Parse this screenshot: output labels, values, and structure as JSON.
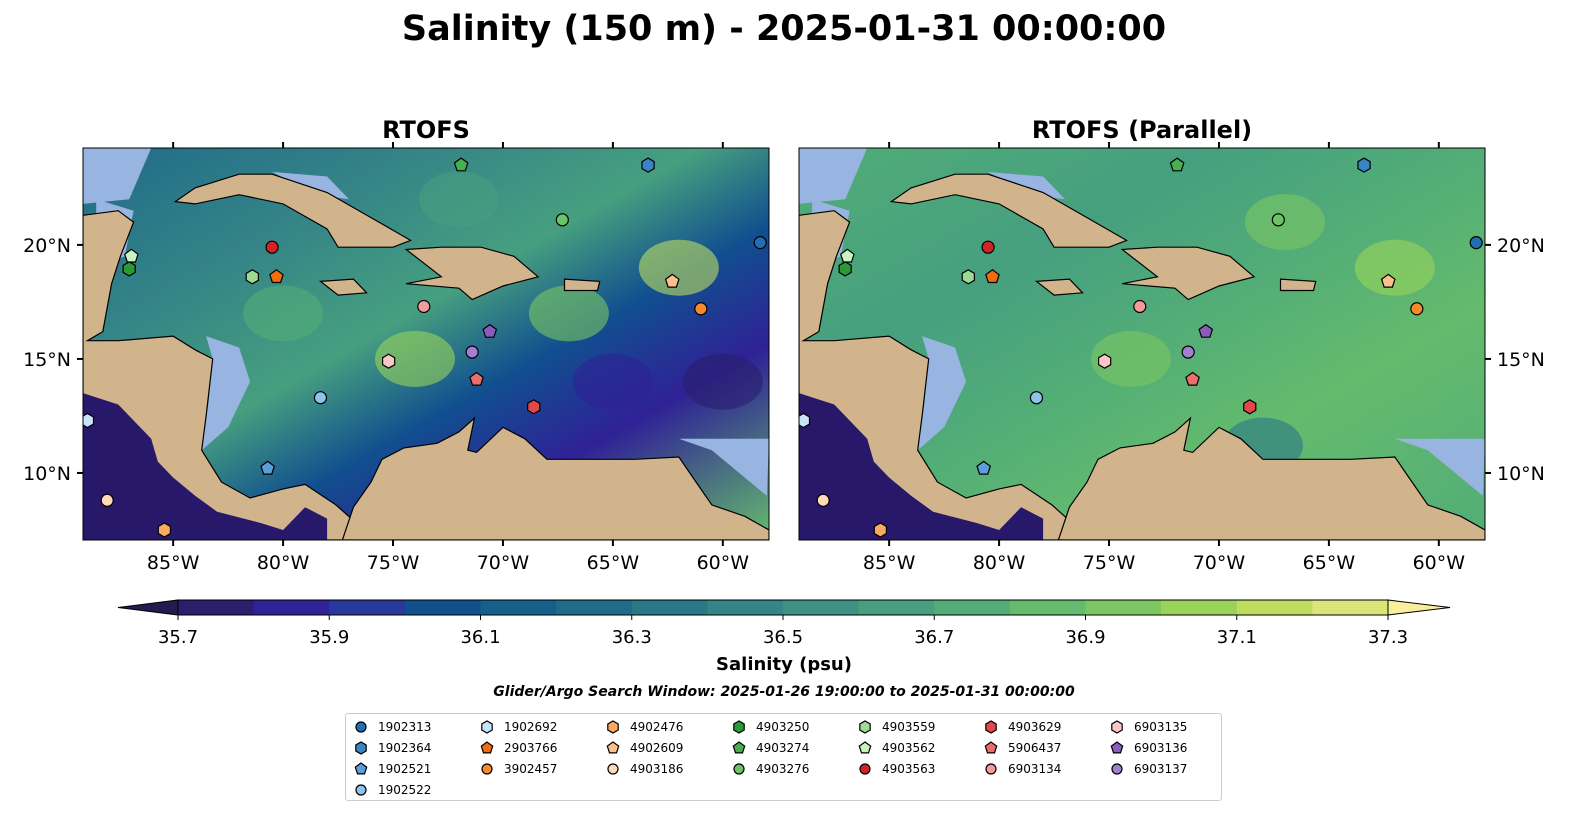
{
  "title": "Salinity (150 m) - 2025-01-31 00:00:00",
  "chart_data": {
    "type": "map-contour",
    "title": "Salinity (150 m) - 2025-01-31 00:00:00",
    "panels": [
      {
        "title": "RTOFS",
        "style": "mixed"
      },
      {
        "title": "RTOFS (Parallel)",
        "style": "green"
      }
    ],
    "lon_range": [
      -89.1,
      -57.9
    ],
    "lat_range": [
      7.06,
      24.25
    ],
    "x_ticks": [
      {
        "v": -85,
        "label": "85°W"
      },
      {
        "v": -80,
        "label": "80°W"
      },
      {
        "v": -75,
        "label": "75°W"
      },
      {
        "v": -70,
        "label": "70°W"
      },
      {
        "v": -65,
        "label": "65°W"
      },
      {
        "v": -60,
        "label": "60°W"
      }
    ],
    "y_ticks": [
      {
        "v": 20,
        "label": "20°N"
      },
      {
        "v": 15,
        "label": "15°N"
      },
      {
        "v": 10,
        "label": "10°N"
      }
    ],
    "colorbar": {
      "label": "Salinity (psu)",
      "min": 35.7,
      "max": 37.3,
      "step": 0.1,
      "ticks": [
        "35.7",
        "35.9",
        "36.1",
        "36.3",
        "36.5",
        "36.7",
        "36.9",
        "37.1",
        "37.3"
      ],
      "colors": [
        "#2a1e6e",
        "#2f2196",
        "#263a9b",
        "#114f8f",
        "#175f8a",
        "#1f6b88",
        "#2a7787",
        "#358487",
        "#3c9284",
        "#469f7f",
        "#52ad77",
        "#64bb6d",
        "#7cc762",
        "#99d35a",
        "#bedd5f",
        "#dde57a"
      ],
      "extend_low": "#231a4f",
      "extend_high": "#f7ef9a"
    },
    "subtitle": "Glider/Argo Search Window: 2025-01-26 19:00:00 to 2025-01-31 00:00:00",
    "floats": [
      {
        "id": "1902313",
        "marker": "circle",
        "color": "#1f6fb4",
        "lon": -58.3,
        "lat": 20.1
      },
      {
        "id": "1902364",
        "marker": "hexagon",
        "color": "#3a83c4",
        "lon": -63.4,
        "lat": 23.5
      },
      {
        "id": "1902521",
        "marker": "pentagon",
        "color": "#5b9fd9",
        "lon": -80.7,
        "lat": 10.2
      },
      {
        "id": "1902522",
        "marker": "circle",
        "color": "#8ec3ea",
        "lon": -78.3,
        "lat": 13.3
      },
      {
        "id": "1902692",
        "marker": "hexagon",
        "color": "#c8e4f8",
        "lon": -88.9,
        "lat": 12.3
      },
      {
        "id": "2903766",
        "marker": "pentagon",
        "color": "#f06c0c",
        "lon": -80.3,
        "lat": 18.6
      },
      {
        "id": "3902457",
        "marker": "circle",
        "color": "#f78a2c",
        "lon": -61.0,
        "lat": 17.2
      },
      {
        "id": "4902476",
        "marker": "hexagon",
        "color": "#f9a964",
        "lon": -85.4,
        "lat": 7.5
      },
      {
        "id": "4902609",
        "marker": "pentagon",
        "color": "#fbc18d",
        "lon": -62.3,
        "lat": 18.4
      },
      {
        "id": "4903186",
        "marker": "circle",
        "color": "#fddbb8",
        "lon": -88.0,
        "lat": 8.8
      },
      {
        "id": "4903250",
        "marker": "hexagon",
        "color": "#2b9a35",
        "lon": -87.0,
        "lat": 18.95
      },
      {
        "id": "4903274",
        "marker": "pentagon",
        "color": "#45b04d",
        "lon": -71.9,
        "lat": 23.5
      },
      {
        "id": "4903276",
        "marker": "circle",
        "color": "#6bc566",
        "lon": -67.3,
        "lat": 21.1
      },
      {
        "id": "4903559",
        "marker": "hexagon",
        "color": "#9ddb94",
        "lon": -81.4,
        "lat": 18.6
      },
      {
        "id": "4903562",
        "marker": "pentagon",
        "color": "#c9f2c0",
        "lon": -86.9,
        "lat": 19.5
      },
      {
        "id": "4903563",
        "marker": "circle",
        "color": "#d42325",
        "lon": -80.5,
        "lat": 19.9
      },
      {
        "id": "4903629",
        "marker": "hexagon",
        "color": "#e2474a",
        "lon": -68.6,
        "lat": 12.9
      },
      {
        "id": "5906437",
        "marker": "pentagon",
        "color": "#ec6d6d",
        "lon": -71.2,
        "lat": 14.1
      },
      {
        "id": "6903134",
        "marker": "circle",
        "color": "#f39a9a",
        "lon": -73.6,
        "lat": 17.3
      },
      {
        "id": "6903135",
        "marker": "hexagon",
        "color": "#fbc6c6",
        "lon": -75.2,
        "lat": 14.9
      },
      {
        "id": "6903136",
        "marker": "pentagon",
        "color": "#8a5cbc",
        "lon": -70.6,
        "lat": 16.2
      },
      {
        "id": "6903137",
        "marker": "circle",
        "color": "#a27fd0",
        "lon": -71.4,
        "lat": 15.3
      }
    ]
  },
  "colors": {
    "land": "#d2b48c",
    "shallow": "#98b4e0",
    "pacific": "#28186a"
  }
}
